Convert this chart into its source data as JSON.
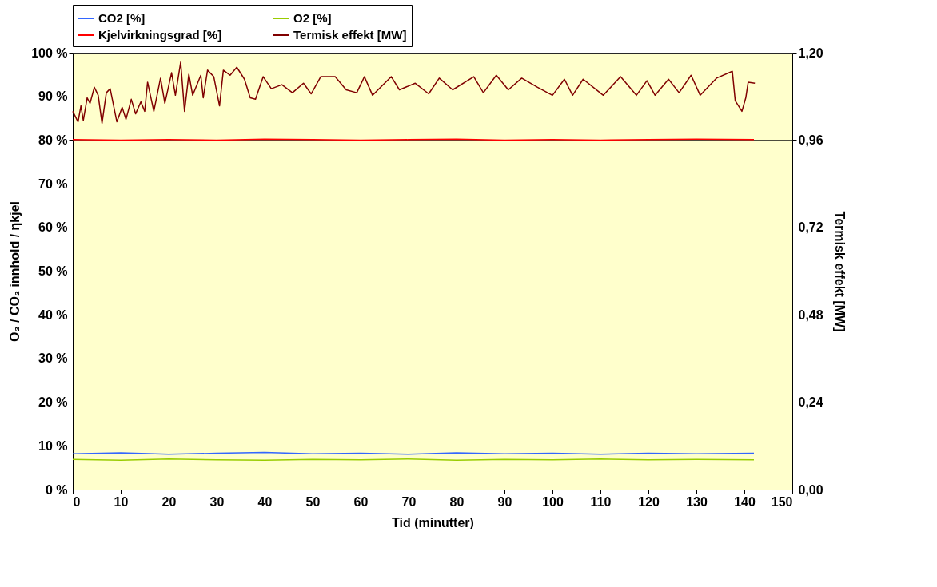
{
  "chart_data": {
    "type": "line",
    "xlabel": "Tid (minutter)",
    "ylabel": "O₂ / CO₂ innhold / ηkjel",
    "y2label": "Termisk effekt [MW]",
    "xlim": [
      0,
      150
    ],
    "xticks": [
      0,
      10,
      20,
      30,
      40,
      50,
      60,
      70,
      80,
      90,
      100,
      110,
      120,
      130,
      140,
      150
    ],
    "ylim": [
      0,
      100
    ],
    "yticks": [
      {
        "value": 0,
        "label": "0 %"
      },
      {
        "value": 10,
        "label": "10 %"
      },
      {
        "value": 20,
        "label": "20 %"
      },
      {
        "value": 30,
        "label": "30 %"
      },
      {
        "value": 40,
        "label": "40 %"
      },
      {
        "value": 50,
        "label": "50 %"
      },
      {
        "value": 60,
        "label": "60 %"
      },
      {
        "value": 70,
        "label": "70 %"
      },
      {
        "value": 80,
        "label": "80 %"
      },
      {
        "value": 90,
        "label": "90 %"
      },
      {
        "value": 100,
        "label": "100 %"
      }
    ],
    "y2lim": [
      0,
      1.2
    ],
    "y2ticks": [
      {
        "value": 0,
        "label": "0,00"
      },
      {
        "value": 0.24,
        "label": "0,24"
      },
      {
        "value": 0.48,
        "label": "0,48"
      },
      {
        "value": 0.72,
        "label": "0,72"
      },
      {
        "value": 0.96,
        "label": "0,96"
      },
      {
        "value": 1.2,
        "label": "1,20"
      }
    ],
    "grid": "y",
    "legend": "top",
    "marker": "none",
    "line_style": "solid",
    "series": [
      {
        "name": "CO2 [%]",
        "color": "#3366ff",
        "x": [
          0,
          10,
          20,
          30,
          40,
          50,
          60,
          70,
          80,
          90,
          100,
          110,
          120,
          130,
          142
        ],
        "values": [
          8.2,
          8.4,
          8.1,
          8.3,
          8.5,
          8.2,
          8.3,
          8.1,
          8.4,
          8.2,
          8.3,
          8.1,
          8.3,
          8.2,
          8.3
        ]
      },
      {
        "name": "O2 [%]",
        "color": "#99cc00",
        "x": [
          0,
          10,
          20,
          30,
          40,
          50,
          60,
          70,
          80,
          90,
          100,
          110,
          120,
          130,
          142
        ],
        "values": [
          6.9,
          6.7,
          7.0,
          6.8,
          6.7,
          6.9,
          6.8,
          7.0,
          6.7,
          6.9,
          6.8,
          7.0,
          6.8,
          6.9,
          6.8
        ]
      },
      {
        "name": "Kjelvirkningsgrad [%]",
        "color": "#ff0000",
        "x": [
          0,
          10,
          20,
          30,
          40,
          50,
          60,
          70,
          80,
          90,
          100,
          110,
          120,
          130,
          142
        ],
        "values": [
          80.1,
          80.0,
          80.1,
          80.0,
          80.2,
          80.1,
          80.0,
          80.1,
          80.2,
          80.0,
          80.1,
          80.0,
          80.1,
          80.2,
          80.1
        ]
      },
      {
        "name": "Termisk effekt [MW]",
        "color": "#800000",
        "axis": "y2",
        "x": [
          0,
          1.1,
          1.7,
          2.2,
          3.0,
          3.6,
          4.5,
          5.3,
          6.1,
          7.0,
          7.8,
          9.2,
          10.3,
          11.1,
          12.2,
          13.1,
          14.2,
          15.0,
          15.6,
          16.9,
          18.3,
          19.2,
          20.6,
          21.4,
          22.5,
          23.3,
          24.2,
          25.0,
          26.7,
          27.2,
          28.1,
          29.4,
          30.6,
          31.4,
          32.8,
          34.2,
          35.8,
          37.0,
          38.1,
          39.7,
          41.4,
          43.6,
          45.8,
          48.1,
          49.7,
          51.7,
          54.7,
          57.0,
          59.2,
          60.8,
          62.5,
          66.4,
          68.1,
          71.4,
          74.2,
          76.4,
          79.2,
          83.6,
          85.6,
          88.3,
          90.8,
          93.6,
          96.9,
          100.0,
          102.5,
          104.2,
          106.4,
          110.6,
          114.2,
          117.5,
          119.7,
          121.4,
          124.2,
          126.4,
          128.9,
          130.8,
          134.2,
          137.5,
          138.1,
          139.5,
          140.3,
          140.8,
          142.2
        ],
        "values": [
          1.039,
          1.01,
          1.054,
          1.014,
          1.076,
          1.061,
          1.105,
          1.083,
          1.006,
          1.09,
          1.101,
          1.01,
          1.05,
          1.017,
          1.072,
          1.032,
          1.065,
          1.039,
          1.119,
          1.039,
          1.13,
          1.061,
          1.145,
          1.083,
          1.174,
          1.039,
          1.141,
          1.083,
          1.138,
          1.076,
          1.152,
          1.134,
          1.054,
          1.152,
          1.138,
          1.16,
          1.127,
          1.076,
          1.072,
          1.134,
          1.101,
          1.112,
          1.09,
          1.116,
          1.087,
          1.134,
          1.134,
          1.098,
          1.09,
          1.134,
          1.083,
          1.134,
          1.098,
          1.116,
          1.087,
          1.13,
          1.098,
          1.134,
          1.09,
          1.138,
          1.098,
          1.13,
          1.105,
          1.083,
          1.127,
          1.083,
          1.127,
          1.083,
          1.134,
          1.083,
          1.123,
          1.083,
          1.127,
          1.09,
          1.138,
          1.083,
          1.13,
          1.149,
          1.068,
          1.039,
          1.076,
          1.119,
          1.116
        ]
      }
    ]
  }
}
